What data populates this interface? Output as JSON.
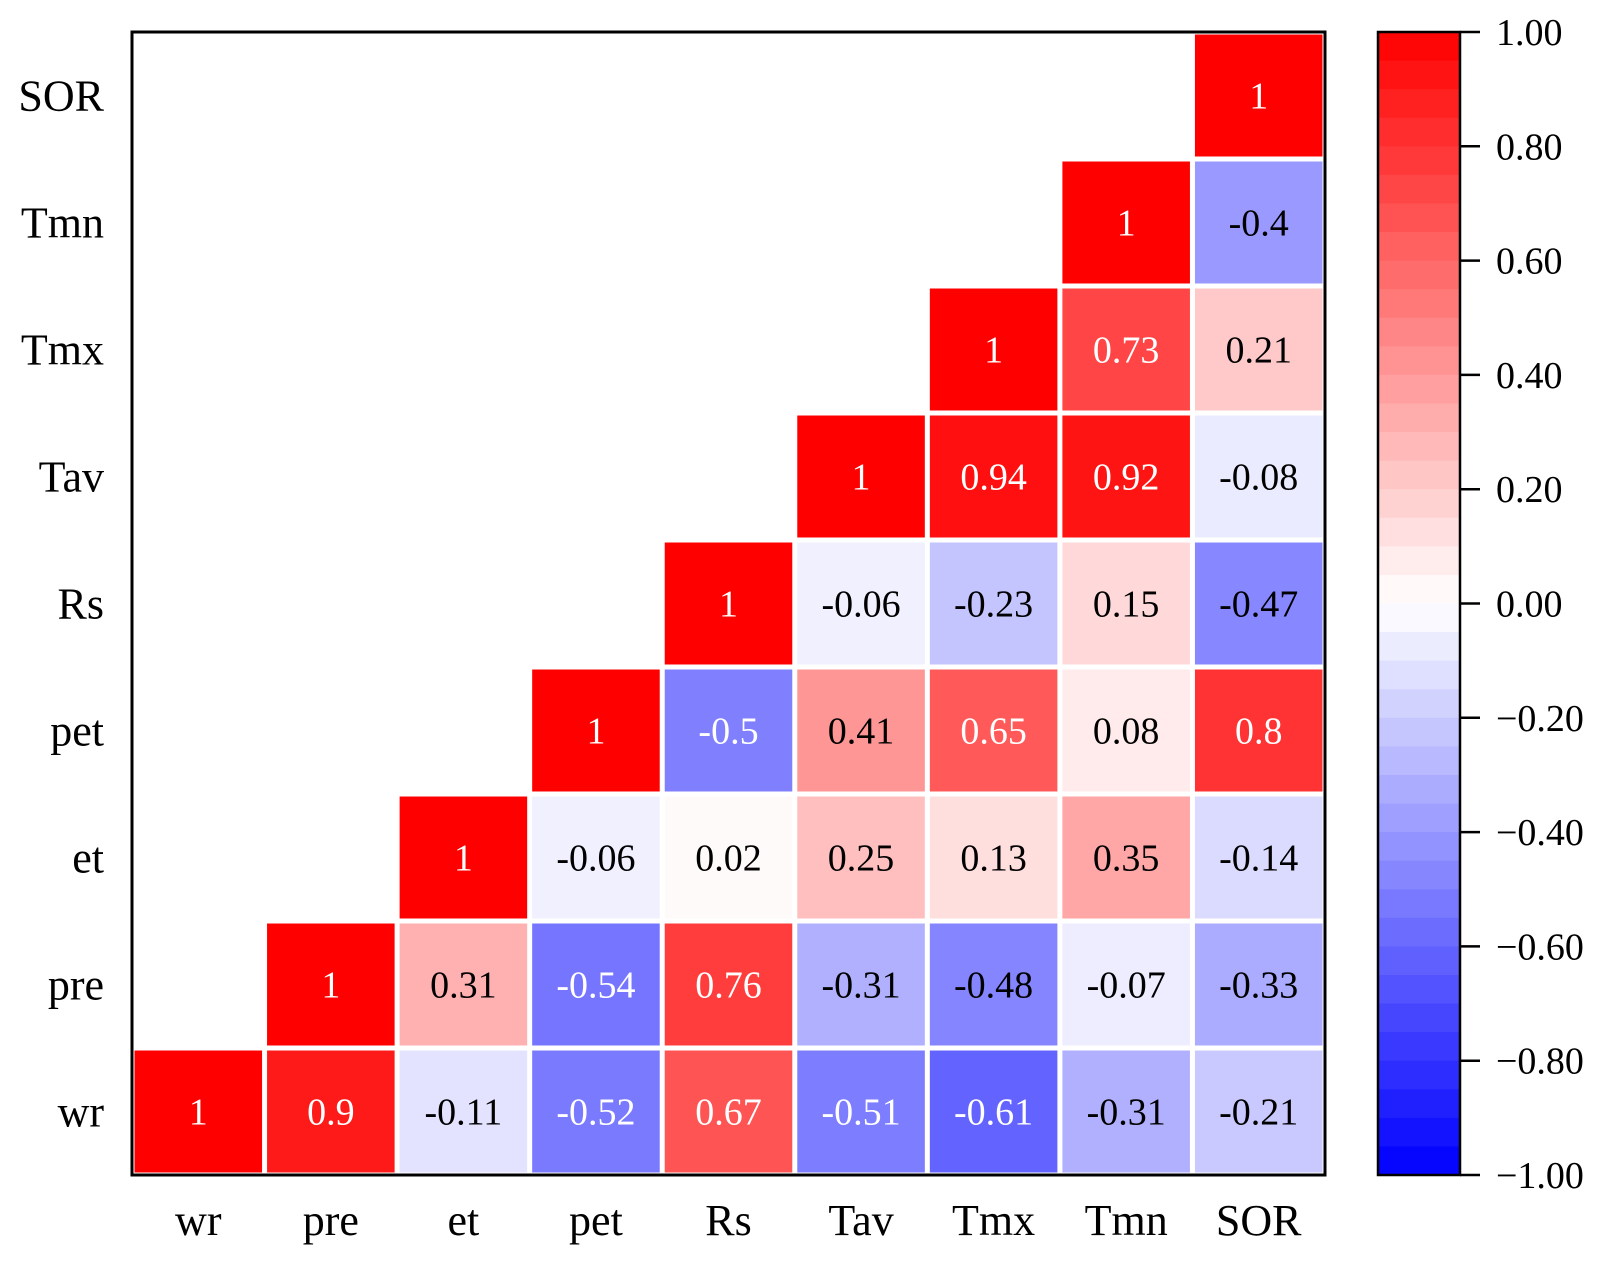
{
  "chart_data": {
    "type": "heatmap",
    "title": "",
    "variables": [
      "wr",
      "pre",
      "et",
      "pet",
      "Rs",
      "Tav",
      "Tmx",
      "Tmn",
      "SOR"
    ],
    "x_labels": [
      "wr",
      "pre",
      "et",
      "pet",
      "Rs",
      "Tav",
      "Tmx",
      "Tmn",
      "SOR"
    ],
    "y_labels": [
      "SOR",
      "Tmn",
      "Tmx",
      "Tav",
      "Rs",
      "pet",
      "et",
      "pre",
      "wr"
    ],
    "layout": "upper-triangle correlation matrix (wr at bottom-left)",
    "cells": [
      {
        "row": "wr",
        "values": [
          "1",
          "0.9",
          "-0.11",
          "-0.52",
          "0.67",
          "-0.51",
          "-0.61",
          "-0.31",
          "-0.21"
        ]
      },
      {
        "row": "pre",
        "values": [
          "1",
          "0.31",
          "-0.54",
          "0.76",
          "-0.31",
          "-0.48",
          "-0.07",
          "-0.33"
        ]
      },
      {
        "row": "et",
        "values": [
          "1",
          "-0.06",
          "0.02",
          "0.25",
          "0.13",
          "0.35",
          "-0.14"
        ]
      },
      {
        "row": "pet",
        "values": [
          "1",
          "-0.5",
          "0.41",
          "0.65",
          "0.08",
          "0.8"
        ]
      },
      {
        "row": "Rs",
        "values": [
          "1",
          "-0.06",
          "-0.23",
          "0.15",
          "-0.47"
        ]
      },
      {
        "row": "Tav",
        "values": [
          "1",
          "0.94",
          "0.92",
          "-0.08"
        ]
      },
      {
        "row": "Tmx",
        "values": [
          "1",
          "0.73",
          "0.21"
        ]
      },
      {
        "row": "Tmn",
        "values": [
          "1",
          "-0.4"
        ]
      },
      {
        "row": "SOR",
        "values": [
          "1"
        ]
      }
    ],
    "colorbar": {
      "range": [
        -1.0,
        1.0
      ],
      "tick_labels": [
        "1.00",
        "0.80",
        "0.60",
        "0.40",
        "0.20",
        "0.00",
        "−0.20",
        "−0.40",
        "−0.60",
        "−0.80",
        "−1.00"
      ],
      "tick_values": [
        1.0,
        0.8,
        0.6,
        0.4,
        0.2,
        0.0,
        -0.2,
        -0.4,
        -0.6,
        -0.8,
        -1.0
      ],
      "colors": {
        "positive": "#ff0000",
        "neutral": "#ffffff",
        "negative": "#0000ff"
      }
    }
  }
}
